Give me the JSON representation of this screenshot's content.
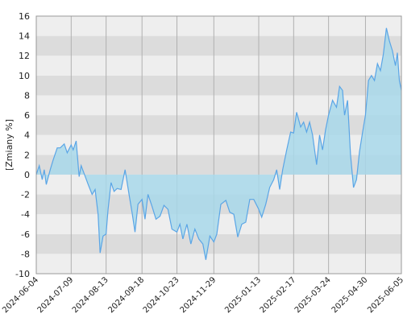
{
  "chart_data": {
    "type": "area",
    "ylabel": "[Zmiany %]",
    "xlim": [
      "2024-06-04",
      "2025-06-05"
    ],
    "xticks": [
      "2024-06-04",
      "2024-07-09",
      "2024-08-13",
      "2024-09-18",
      "2024-10-23",
      "2024-11-29",
      "2025-01-13",
      "2025-02-17",
      "2025-03-24",
      "2025-04-30",
      "2025-06-05"
    ],
    "ylim": [
      -10,
      16
    ],
    "yticks": [
      -10,
      -8,
      -6,
      -4,
      -2,
      0,
      2,
      4,
      6,
      8,
      10,
      12,
      14,
      16
    ],
    "grid": true,
    "color": "#5aa5e6",
    "fill": "#a8d8ea",
    "x": [
      "2024-06-04",
      "2024-06-07",
      "2024-06-10",
      "2024-06-12",
      "2024-06-14",
      "2024-06-18",
      "2024-06-21",
      "2024-06-25",
      "2024-06-28",
      "2024-07-02",
      "2024-07-05",
      "2024-07-09",
      "2024-07-11",
      "2024-07-14",
      "2024-07-17",
      "2024-07-19",
      "2024-07-22",
      "2024-07-26",
      "2024-07-30",
      "2024-08-02",
      "2024-08-05",
      "2024-08-07",
      "2024-08-10",
      "2024-08-13",
      "2024-08-15",
      "2024-08-18",
      "2024-08-21",
      "2024-08-24",
      "2024-08-28",
      "2024-09-01",
      "2024-09-05",
      "2024-09-08",
      "2024-09-11",
      "2024-09-14",
      "2024-09-18",
      "2024-09-21",
      "2024-09-24",
      "2024-09-28",
      "2024-10-02",
      "2024-10-06",
      "2024-10-10",
      "2024-10-14",
      "2024-10-18",
      "2024-10-23",
      "2024-10-26",
      "2024-10-29",
      "2024-11-02",
      "2024-11-06",
      "2024-11-10",
      "2024-11-14",
      "2024-11-18",
      "2024-11-21",
      "2024-11-25",
      "2024-11-29",
      "2024-12-02",
      "2024-12-06",
      "2024-12-11",
      "2024-12-15",
      "2024-12-19",
      "2024-12-23",
      "2024-12-27",
      "2024-12-31",
      "2025-01-04",
      "2025-01-08",
      "2025-01-13",
      "2025-01-16",
      "2025-01-20",
      "2025-01-24",
      "2025-01-28",
      "2025-01-31",
      "2025-02-03",
      "2025-02-06",
      "2025-02-10",
      "2025-02-14",
      "2025-02-17",
      "2025-02-20",
      "2025-02-24",
      "2025-02-27",
      "2025-03-02",
      "2025-03-05",
      "2025-03-08",
      "2025-03-12",
      "2025-03-15",
      "2025-03-18",
      "2025-03-21",
      "2025-03-24",
      "2025-03-28",
      "2025-04-01",
      "2025-04-04",
      "2025-04-07",
      "2025-04-09",
      "2025-04-12",
      "2025-04-15",
      "2025-04-18",
      "2025-04-21",
      "2025-04-24",
      "2025-04-27",
      "2025-04-30",
      "2025-05-03",
      "2025-05-06",
      "2025-05-09",
      "2025-05-12",
      "2025-05-15",
      "2025-05-18",
      "2025-05-21",
      "2025-05-24",
      "2025-05-27",
      "2025-05-30",
      "2025-06-01",
      "2025-06-03",
      "2025-06-05"
    ],
    "values": [
      0,
      0.9,
      -0.5,
      0.5,
      -1,
      0.5,
      1.5,
      2.7,
      2.7,
      3.1,
      2.2,
      3,
      2.5,
      3.4,
      -0.2,
      0.9,
      0.1,
      -1,
      -2,
      -1.5,
      -4,
      -7.9,
      -6.2,
      -6,
      -3.5,
      -0.8,
      -1.7,
      -1.4,
      -1.5,
      0.5,
      -2,
      -3.8,
      -5.8,
      -3,
      -2.5,
      -4.5,
      -2,
      -3.2,
      -4.5,
      -4.2,
      -3.1,
      -3.5,
      -5.5,
      -5.8,
      -5,
      -6.5,
      -5,
      -7,
      -5.5,
      -6.5,
      -7,
      -8.6,
      -6.2,
      -6.8,
      -6,
      -3,
      -2.6,
      -3.8,
      -4,
      -6.3,
      -5,
      -4.8,
      -2.5,
      -2.5,
      -3.5,
      -4.3,
      -3,
      -1.3,
      -0.5,
      0.5,
      -1.5,
      0.5,
      2.5,
      4.3,
      4.2,
      6.3,
      4.8,
      5.3,
      4.3,
      5.3,
      4,
      1,
      4,
      2.5,
      4.5,
      6,
      7.5,
      6.8,
      8.9,
      8.5,
      6,
      7.5,
      2,
      -1.3,
      -0.5,
      2.3,
      4.2,
      6,
      9.5,
      10,
      9.5,
      11.2,
      10.5,
      12.2,
      14.8,
      13.5,
      12.5,
      11,
      12.3,
      9.5,
      8.5
    ]
  }
}
